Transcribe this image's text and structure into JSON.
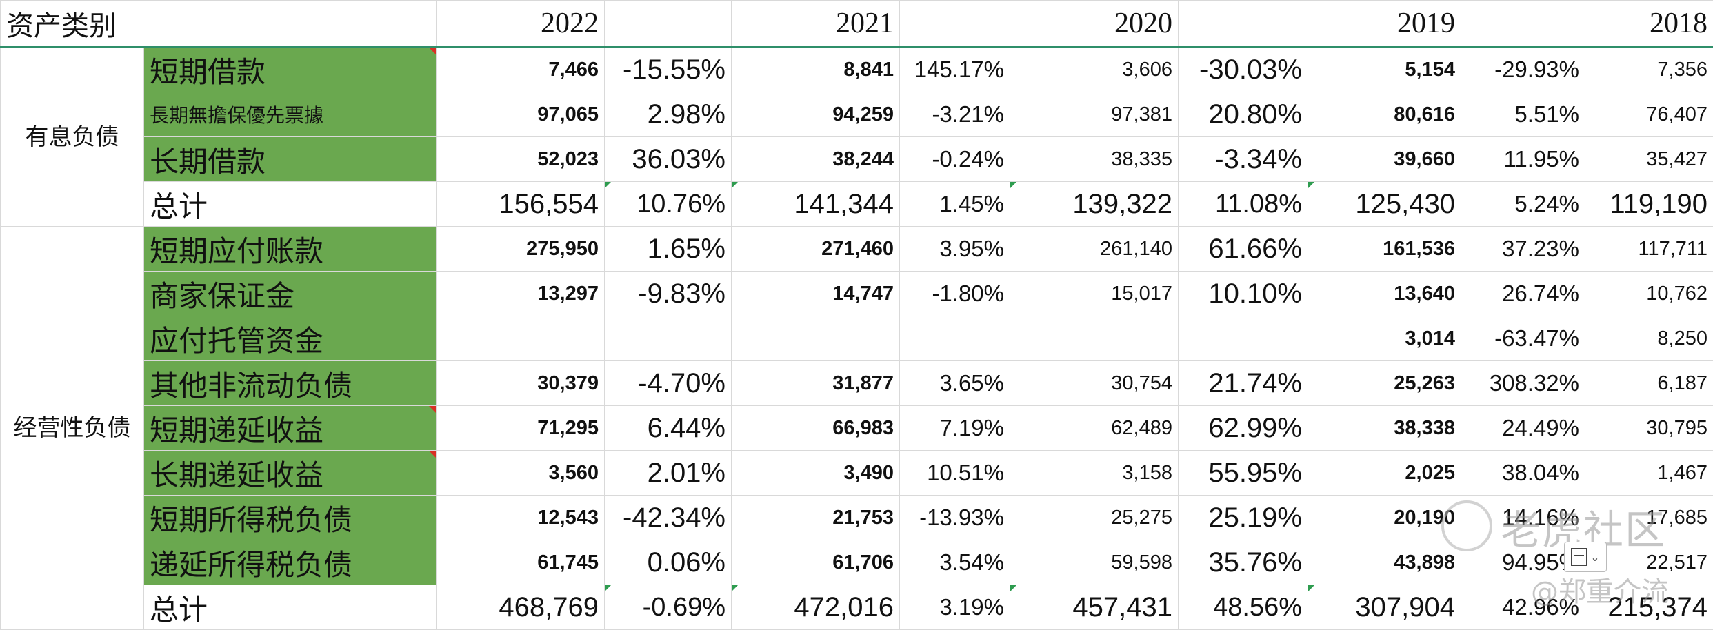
{
  "header": {
    "category": "资产类别",
    "years": [
      "2022",
      "2021",
      "2020",
      "2019",
      "2018"
    ]
  },
  "groups": {
    "interest": "有息负债",
    "operating": "经营性负债"
  },
  "rows": [
    {
      "label": "短期借款",
      "v2022": "7,466",
      "c2022": "-15.55%",
      "v2021": "8,841",
      "c2021": "145.17%",
      "v2020": "3,606",
      "c2020": "-30.03%",
      "v2019": "5,154",
      "c2019": "-29.93%",
      "v2018": "7,356"
    },
    {
      "label": "長期無擔保優先票據",
      "v2022": "97,065",
      "c2022": "2.98%",
      "v2021": "94,259",
      "c2021": "-3.21%",
      "v2020": "97,381",
      "c2020": "20.80%",
      "v2019": "80,616",
      "c2019": "5.51%",
      "v2018": "76,407"
    },
    {
      "label": "长期借款",
      "v2022": "52,023",
      "c2022": "36.03%",
      "v2021": "38,244",
      "c2021": "-0.24%",
      "v2020": "38,335",
      "c2020": "-3.34%",
      "v2019": "39,660",
      "c2019": "11.95%",
      "v2018": "35,427"
    },
    {
      "label": "总计",
      "v2022": "156,554",
      "c2022": "10.76%",
      "v2021": "141,344",
      "c2021": "1.45%",
      "v2020": "139,322",
      "c2020": "11.08%",
      "v2019": "125,430",
      "c2019": "5.24%",
      "v2018": "119,190"
    },
    {
      "label": "短期应付账款",
      "v2022": "275,950",
      "c2022": "1.65%",
      "v2021": "271,460",
      "c2021": "3.95%",
      "v2020": "261,140",
      "c2020": "61.66%",
      "v2019": "161,536",
      "c2019": "37.23%",
      "v2018": "117,711"
    },
    {
      "label": "商家保证金",
      "v2022": "13,297",
      "c2022": "-9.83%",
      "v2021": "14,747",
      "c2021": "-1.80%",
      "v2020": "15,017",
      "c2020": "10.10%",
      "v2019": "13,640",
      "c2019": "26.74%",
      "v2018": "10,762"
    },
    {
      "label": "应付托管资金",
      "v2022": "",
      "c2022": "",
      "v2021": "",
      "c2021": "",
      "v2020": "",
      "c2020": "",
      "v2019": "3,014",
      "c2019": "-63.47%",
      "v2018": "8,250"
    },
    {
      "label": "其他非流动负债",
      "v2022": "30,379",
      "c2022": "-4.70%",
      "v2021": "31,877",
      "c2021": "3.65%",
      "v2020": "30,754",
      "c2020": "21.74%",
      "v2019": "25,263",
      "c2019": "308.32%",
      "v2018": "6,187"
    },
    {
      "label": "短期递延收益",
      "v2022": "71,295",
      "c2022": "6.44%",
      "v2021": "66,983",
      "c2021": "7.19%",
      "v2020": "62,489",
      "c2020": "62.99%",
      "v2019": "38,338",
      "c2019": "24.49%",
      "v2018": "30,795"
    },
    {
      "label": "长期递延收益",
      "v2022": "3,560",
      "c2022": "2.01%",
      "v2021": "3,490",
      "c2021": "10.51%",
      "v2020": "3,158",
      "c2020": "55.95%",
      "v2019": "2,025",
      "c2019": "38.04%",
      "v2018": "1,467"
    },
    {
      "label": "短期所得税负债",
      "v2022": "12,543",
      "c2022": "-42.34%",
      "v2021": "21,753",
      "c2021": "-13.93%",
      "v2020": "25,275",
      "c2020": "25.19%",
      "v2019": "20,190",
      "c2019": "14.16%",
      "v2018": "17,685"
    },
    {
      "label": "递延所得税负债",
      "v2022": "61,745",
      "c2022": "0.06%",
      "v2021": "61,706",
      "c2021": "3.54%",
      "v2020": "59,598",
      "c2020": "35.76%",
      "v2019": "43,898",
      "c2019": "94.95%",
      "v2018": "22,517"
    },
    {
      "label": "总计",
      "v2022": "468,769",
      "c2022": "-0.69%",
      "v2021": "472,016",
      "c2021": "3.19%",
      "v2020": "457,431",
      "c2020": "48.56%",
      "v2019": "307,904",
      "c2019": "42.96%",
      "v2018": "215,374"
    }
  ],
  "watermark": {
    "brand": "老虎社区",
    "user": "@郑重介流"
  },
  "colors": {
    "label_fill": "#6aa84f",
    "highlight_text": "#f2773a",
    "header_rule": "#2f8f6a",
    "comment_marker": "#d93025",
    "formula_marker": "#2e9c4f"
  },
  "icons": [
    "paste-options-icon",
    "comment-marker-icon",
    "formula-warning-icon"
  ]
}
